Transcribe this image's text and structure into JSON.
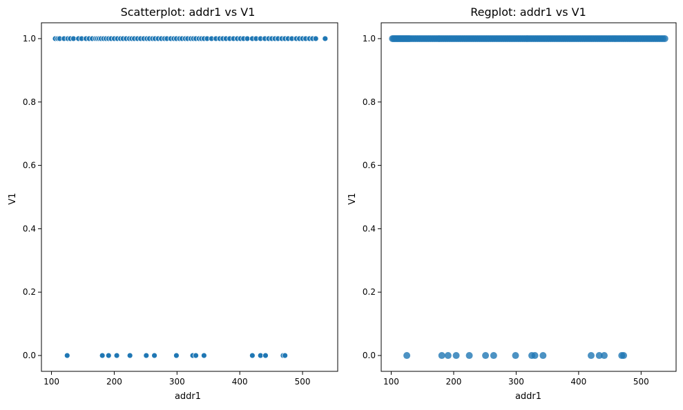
{
  "chart_data": [
    {
      "type": "scatter",
      "title": "Scatterplot: addr1 vs V1",
      "xlabel": "addr1",
      "ylabel": "V1",
      "xlim": [
        84,
        556
      ],
      "ylim": [
        -0.05,
        1.05
      ],
      "xticks": [
        100,
        200,
        300,
        400,
        500
      ],
      "yticks": [
        0.0,
        0.2,
        0.4,
        0.6,
        0.8,
        1.0
      ],
      "xtick_labels": [
        "100",
        "200",
        "300",
        "400",
        "500"
      ],
      "ytick_labels": [
        "0.0",
        "0.2",
        "0.4",
        "0.6",
        "0.8",
        "1.0"
      ],
      "grid": false,
      "marker_color": "#1f77b4",
      "marker_edge": "white",
      "series": [
        {
          "x": [
            106,
            110,
            113,
            120,
            126,
            130,
            135,
            143,
            148,
            155,
            160,
            165,
            170,
            173,
            176,
            179,
            183,
            187,
            191,
            195,
            200,
            205,
            210,
            214,
            219,
            224,
            228,
            232,
            237,
            242,
            247,
            252,
            256,
            261,
            265,
            270,
            275,
            280,
            284,
            290,
            295,
            299,
            304,
            308,
            313,
            317,
            322,
            326,
            330,
            335,
            339,
            343,
            348,
            355,
            362,
            368,
            373,
            378,
            384,
            390,
            396,
            401,
            406,
            412,
            420,
            426,
            433,
            440,
            446,
            451,
            456,
            461,
            467,
            472,
            477,
            483,
            490,
            495,
            500,
            505,
            511,
            516,
            521,
            536
          ],
          "y": [
            1,
            1,
            1,
            1,
            1,
            1,
            1,
            1,
            1,
            1,
            1,
            1,
            1,
            1,
            1,
            1,
            1,
            1,
            1,
            1,
            1,
            1,
            1,
            1,
            1,
            1,
            1,
            1,
            1,
            1,
            1,
            1,
            1,
            1,
            1,
            1,
            1,
            1,
            1,
            1,
            1,
            1,
            1,
            1,
            1,
            1,
            1,
            1,
            1,
            1,
            1,
            1,
            1,
            1,
            1,
            1,
            1,
            1,
            1,
            1,
            1,
            1,
            1,
            1,
            1,
            1,
            1,
            1,
            1,
            1,
            1,
            1,
            1,
            1,
            1,
            1,
            1,
            1,
            1,
            1,
            1,
            1,
            1,
            1
          ]
        },
        {
          "x": [
            125,
            181,
            191,
            204,
            225,
            251,
            264,
            299,
            325,
            330,
            343,
            420,
            433,
            441,
            469,
            472
          ],
          "y": [
            0,
            0,
            0,
            0,
            0,
            0,
            0,
            0,
            0,
            0,
            0,
            0,
            0,
            0,
            0,
            0
          ]
        }
      ]
    },
    {
      "type": "scatter",
      "title": "Regplot: addr1 vs V1",
      "xlabel": "addr1",
      "ylabel": "V1",
      "xlim": [
        84,
        556
      ],
      "ylim": [
        -0.05,
        1.05
      ],
      "xticks": [
        100,
        200,
        300,
        400,
        500
      ],
      "yticks": [
        0.0,
        0.2,
        0.4,
        0.6,
        0.8,
        1.0
      ],
      "xtick_labels": [
        "100",
        "200",
        "300",
        "400",
        "500"
      ],
      "ytick_labels": [
        "0.0",
        "0.2",
        "0.4",
        "0.6",
        "0.8",
        "1.0"
      ],
      "grid": false,
      "marker_color": "#1f77b4",
      "marker_opacity": 0.8,
      "series": [
        {
          "x": [
            102,
            104,
            106,
            108,
            110,
            112,
            114,
            116,
            118,
            120,
            122,
            124,
            126,
            128,
            130,
            133,
            136,
            139,
            142,
            145,
            148,
            151,
            154,
            157,
            160,
            163,
            166,
            169,
            172,
            175,
            178,
            181,
            184,
            187,
            190,
            193,
            196,
            199,
            202,
            205,
            208,
            211,
            214,
            217,
            220,
            223,
            226,
            229,
            232,
            235,
            238,
            241,
            244,
            247,
            250,
            253,
            256,
            259,
            262,
            265,
            268,
            271,
            274,
            277,
            280,
            283,
            286,
            289,
            292,
            295,
            298,
            301,
            304,
            307,
            310,
            313,
            316,
            319,
            322,
            325,
            328,
            331,
            334,
            337,
            340,
            343,
            346,
            349,
            352,
            355,
            358,
            361,
            364,
            367,
            370,
            373,
            376,
            379,
            382,
            385,
            388,
            391,
            394,
            397,
            400,
            403,
            406,
            409,
            412,
            415,
            418,
            421,
            424,
            427,
            430,
            433,
            436,
            439,
            442,
            445,
            448,
            451,
            454,
            457,
            460,
            463,
            466,
            469,
            472,
            475,
            478,
            481,
            484,
            487,
            490,
            493,
            496,
            499,
            502,
            505,
            508,
            511,
            514,
            517,
            520,
            523,
            526,
            529,
            532,
            535,
            538
          ],
          "y": [
            1,
            1,
            1,
            1,
            1,
            1,
            1,
            1,
            1,
            1,
            1,
            1,
            1,
            1,
            1,
            1,
            1,
            1,
            1,
            1,
            1,
            1,
            1,
            1,
            1,
            1,
            1,
            1,
            1,
            1,
            1,
            1,
            1,
            1,
            1,
            1,
            1,
            1,
            1,
            1,
            1,
            1,
            1,
            1,
            1,
            1,
            1,
            1,
            1,
            1,
            1,
            1,
            1,
            1,
            1,
            1,
            1,
            1,
            1,
            1,
            1,
            1,
            1,
            1,
            1,
            1,
            1,
            1,
            1,
            1,
            1,
            1,
            1,
            1,
            1,
            1,
            1,
            1,
            1,
            1,
            1,
            1,
            1,
            1,
            1,
            1,
            1,
            1,
            1,
            1,
            1,
            1,
            1,
            1,
            1,
            1,
            1,
            1,
            1,
            1,
            1,
            1,
            1,
            1,
            1,
            1,
            1,
            1,
            1,
            1,
            1,
            1,
            1,
            1,
            1,
            1,
            1,
            1,
            1,
            1,
            1,
            1,
            1,
            1,
            1,
            1,
            1,
            1,
            1,
            1,
            1,
            1,
            1,
            1,
            1,
            1,
            1,
            1,
            1,
            1,
            1,
            1,
            1,
            1,
            1,
            1,
            1,
            1,
            1,
            1,
            1
          ]
        },
        {
          "x": [
            125,
            181,
            191,
            204,
            225,
            251,
            264,
            299,
            325,
            330,
            343,
            420,
            433,
            441,
            469,
            472
          ],
          "y": [
            0,
            0,
            0,
            0,
            0,
            0,
            0,
            0,
            0,
            0,
            0,
            0,
            0,
            0,
            0,
            0
          ]
        }
      ]
    }
  ]
}
